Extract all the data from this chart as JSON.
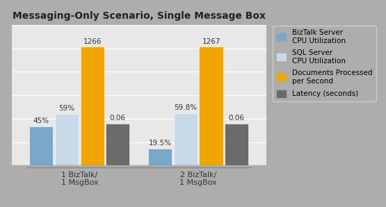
{
  "title": "Messaging-Only Scenario, Single Message Box",
  "groups": [
    "1 BizTalk/\n1 MsgBox",
    "2 BizTalk/\n1 MsgBox"
  ],
  "series": [
    {
      "label": "BizTalk Server\nCPU Utilization",
      "color": "#7BA7C9",
      "display_values": [
        420,
        182
      ],
      "labels": [
        "45%",
        "19.5%"
      ]
    },
    {
      "label": "SQL Server\nCPU Utilization",
      "color": "#C8D9EA",
      "display_values": [
        550,
        557
      ],
      "labels": [
        "59%",
        "59.8%"
      ]
    },
    {
      "label": "Documents Processed\nper Second",
      "color": "#F0A500",
      "display_values": [
        1266,
        1267
      ],
      "labels": [
        "1266",
        "1267"
      ]
    },
    {
      "label": "Latency (seconds)",
      "color": "#6B6B6B",
      "display_values": [
        450,
        450
      ],
      "labels": [
        "0.06",
        "0.06"
      ]
    }
  ],
  "background_color": "#ADADAD",
  "plot_bg_color": "#E8E8E8",
  "title_fontsize": 10,
  "label_fontsize": 7.5,
  "tick_fontsize": 8,
  "legend_fontsize": 7.5,
  "ylim": [
    0,
    1500
  ],
  "bar_width": 0.14,
  "group_positions": [
    0.35,
    1.05
  ]
}
